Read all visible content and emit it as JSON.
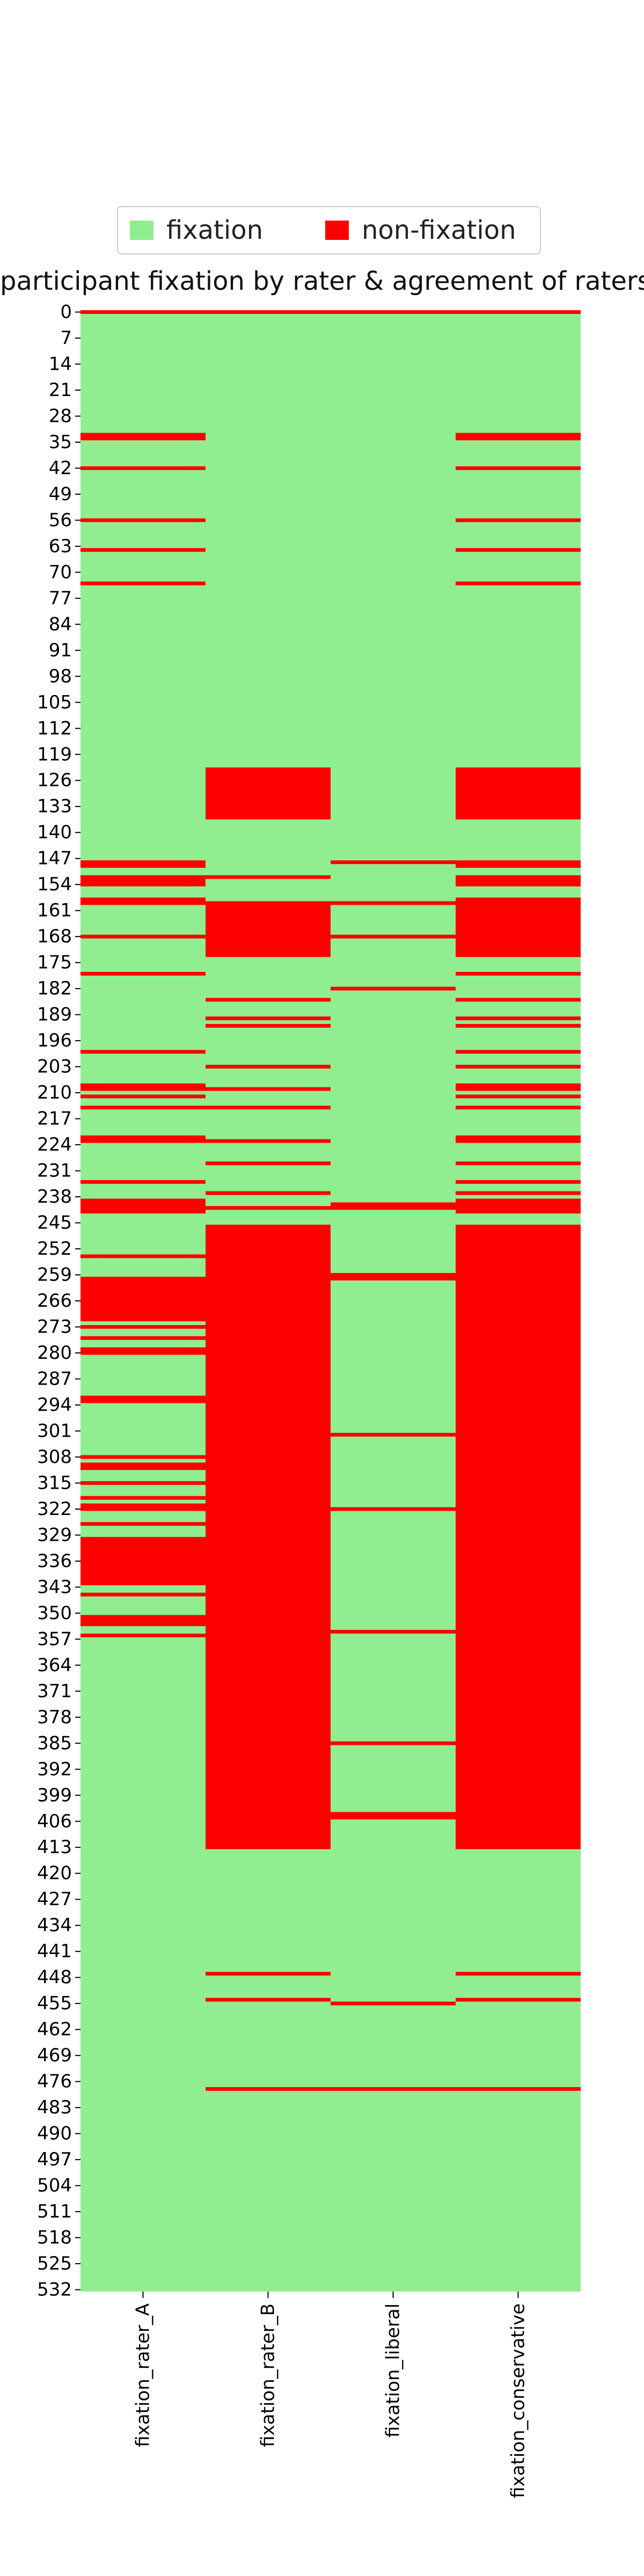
{
  "chart_data": {
    "type": "heatmap",
    "title": "participant fixation by rater & agreement of raters",
    "columns": [
      "fixation_rater_A",
      "fixation_rater_B",
      "fixation_liberal",
      "fixation_conservative"
    ],
    "row_count": 533,
    "ytick_labels": [
      "0",
      "7",
      "14",
      "21",
      "28",
      "35",
      "42",
      "49",
      "56",
      "63",
      "70",
      "77",
      "84",
      "91",
      "98",
      "105",
      "112",
      "119",
      "126",
      "133",
      "140",
      "147",
      "154",
      "161",
      "168",
      "175",
      "182",
      "189",
      "196",
      "203",
      "210",
      "217",
      "224",
      "231",
      "238",
      "245",
      "252",
      "259",
      "266",
      "273",
      "280",
      "287",
      "294",
      "301",
      "308",
      "315",
      "322",
      "329",
      "336",
      "343",
      "350",
      "357",
      "364",
      "371",
      "378",
      "385",
      "392",
      "399",
      "406",
      "413",
      "420",
      "427",
      "434",
      "441",
      "448",
      "455",
      "462",
      "469",
      "476",
      "483",
      "490",
      "497",
      "504",
      "511",
      "518",
      "525",
      "532"
    ],
    "legend": [
      {
        "label": "fixation",
        "color": "#90ee90"
      },
      {
        "label": "non-fixation",
        "color": "#ff0000"
      }
    ],
    "non_fixation_rows": {
      "fixation_rater_A": [
        0,
        33,
        34,
        42,
        56,
        64,
        73,
        148,
        149,
        152,
        153,
        154,
        158,
        159,
        168,
        178,
        199,
        208,
        209,
        211,
        214,
        222,
        223,
        234,
        239,
        240,
        241,
        242,
        254,
        260,
        261,
        262,
        263,
        264,
        265,
        266,
        267,
        268,
        269,
        270,
        271,
        273,
        276,
        279,
        280,
        292,
        293,
        308,
        310,
        311,
        315,
        319,
        321,
        322,
        326,
        330,
        331,
        332,
        333,
        334,
        335,
        336,
        337,
        338,
        339,
        340,
        341,
        342,
        345,
        351,
        352,
        353,
        356
      ],
      "fixation_rater_B": [
        0,
        123,
        124,
        125,
        126,
        127,
        128,
        129,
        130,
        131,
        132,
        133,
        134,
        135,
        136,
        152,
        159,
        160,
        161,
        162,
        163,
        164,
        165,
        166,
        167,
        168,
        169,
        170,
        171,
        172,
        173,
        185,
        190,
        192,
        203,
        209,
        214,
        223,
        229,
        237,
        241,
        246,
        247,
        248,
        249,
        250,
        251,
        252,
        253,
        254,
        255,
        256,
        257,
        258,
        259,
        260,
        261,
        262,
        263,
        264,
        265,
        266,
        267,
        268,
        269,
        270,
        271,
        272,
        273,
        274,
        275,
        276,
        277,
        278,
        279,
        280,
        281,
        282,
        283,
        284,
        285,
        286,
        287,
        288,
        289,
        290,
        291,
        292,
        293,
        294,
        295,
        296,
        297,
        298,
        299,
        300,
        301,
        302,
        303,
        304,
        305,
        306,
        307,
        308,
        309,
        310,
        311,
        312,
        313,
        314,
        315,
        316,
        317,
        318,
        319,
        320,
        321,
        322,
        323,
        324,
        325,
        326,
        327,
        328,
        329,
        330,
        331,
        332,
        333,
        334,
        335,
        336,
        337,
        338,
        339,
        340,
        341,
        342,
        343,
        344,
        345,
        346,
        347,
        348,
        349,
        350,
        351,
        352,
        353,
        354,
        355,
        356,
        357,
        358,
        359,
        360,
        361,
        362,
        363,
        364,
        365,
        366,
        367,
        368,
        369,
        370,
        371,
        372,
        373,
        374,
        375,
        376,
        377,
        378,
        379,
        380,
        381,
        382,
        383,
        384,
        385,
        386,
        387,
        388,
        389,
        390,
        391,
        392,
        393,
        394,
        395,
        396,
        397,
        398,
        399,
        400,
        401,
        402,
        403,
        404,
        405,
        406,
        407,
        408,
        409,
        410,
        411,
        412,
        413,
        447,
        454,
        478
      ],
      "fixation_liberal": [
        0,
        148,
        159,
        168,
        182,
        240,
        241,
        259,
        260,
        302,
        322,
        355,
        385,
        404,
        405,
        455,
        478
      ],
      "fixation_conservative": [
        0,
        33,
        34,
        42,
        56,
        64,
        73,
        123,
        124,
        125,
        126,
        127,
        128,
        129,
        130,
        131,
        132,
        133,
        134,
        135,
        136,
        148,
        149,
        152,
        153,
        154,
        158,
        159,
        160,
        161,
        162,
        163,
        164,
        165,
        166,
        167,
        168,
        169,
        170,
        171,
        172,
        173,
        178,
        185,
        190,
        192,
        199,
        203,
        208,
        209,
        211,
        214,
        222,
        223,
        229,
        234,
        237,
        239,
        240,
        241,
        242,
        246,
        247,
        248,
        249,
        250,
        251,
        252,
        253,
        254,
        255,
        256,
        257,
        258,
        259,
        260,
        261,
        262,
        263,
        264,
        265,
        266,
        267,
        268,
        269,
        270,
        271,
        272,
        273,
        274,
        275,
        276,
        277,
        278,
        279,
        280,
        281,
        282,
        283,
        284,
        285,
        286,
        287,
        288,
        289,
        290,
        291,
        292,
        293,
        294,
        295,
        296,
        297,
        298,
        299,
        300,
        301,
        302,
        303,
        304,
        305,
        306,
        307,
        308,
        309,
        310,
        311,
        312,
        313,
        314,
        315,
        316,
        317,
        318,
        319,
        320,
        321,
        322,
        323,
        324,
        325,
        326,
        327,
        328,
        329,
        330,
        331,
        332,
        333,
        334,
        335,
        336,
        337,
        338,
        339,
        340,
        341,
        342,
        343,
        344,
        345,
        346,
        347,
        348,
        349,
        350,
        351,
        352,
        353,
        354,
        355,
        356,
        357,
        358,
        359,
        360,
        361,
        362,
        363,
        364,
        365,
        366,
        367,
        368,
        369,
        370,
        371,
        372,
        373,
        374,
        375,
        376,
        377,
        378,
        379,
        380,
        381,
        382,
        383,
        384,
        385,
        386,
        387,
        388,
        389,
        390,
        391,
        392,
        393,
        394,
        395,
        396,
        397,
        398,
        399,
        400,
        401,
        402,
        403,
        404,
        405,
        406,
        407,
        408,
        409,
        410,
        411,
        412,
        413,
        447,
        454,
        478
      ]
    }
  }
}
